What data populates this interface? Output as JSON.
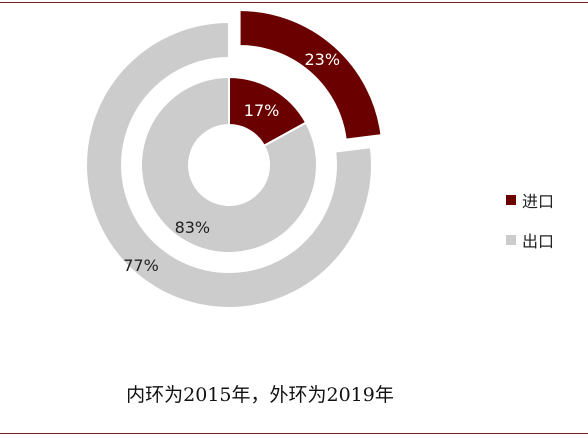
{
  "colors": {
    "import": "#6b0000",
    "export": "#cccccc",
    "rule": "#7a1f24"
  },
  "legend": [
    {
      "label": "进口",
      "color": "#6b0000"
    },
    {
      "label": "出口",
      "color": "#cccccc"
    }
  ],
  "caption": "内环为2015年，外环为2019年",
  "chart_data": {
    "type": "pie",
    "categories": [
      "进口",
      "出口"
    ],
    "series": [
      {
        "values": [
          17,
          83
        ],
        "labels": [
          "17%",
          "83%"
        ]
      },
      {
        "values": [
          23,
          77
        ],
        "labels": [
          "23%",
          "77%"
        ]
      }
    ]
  }
}
